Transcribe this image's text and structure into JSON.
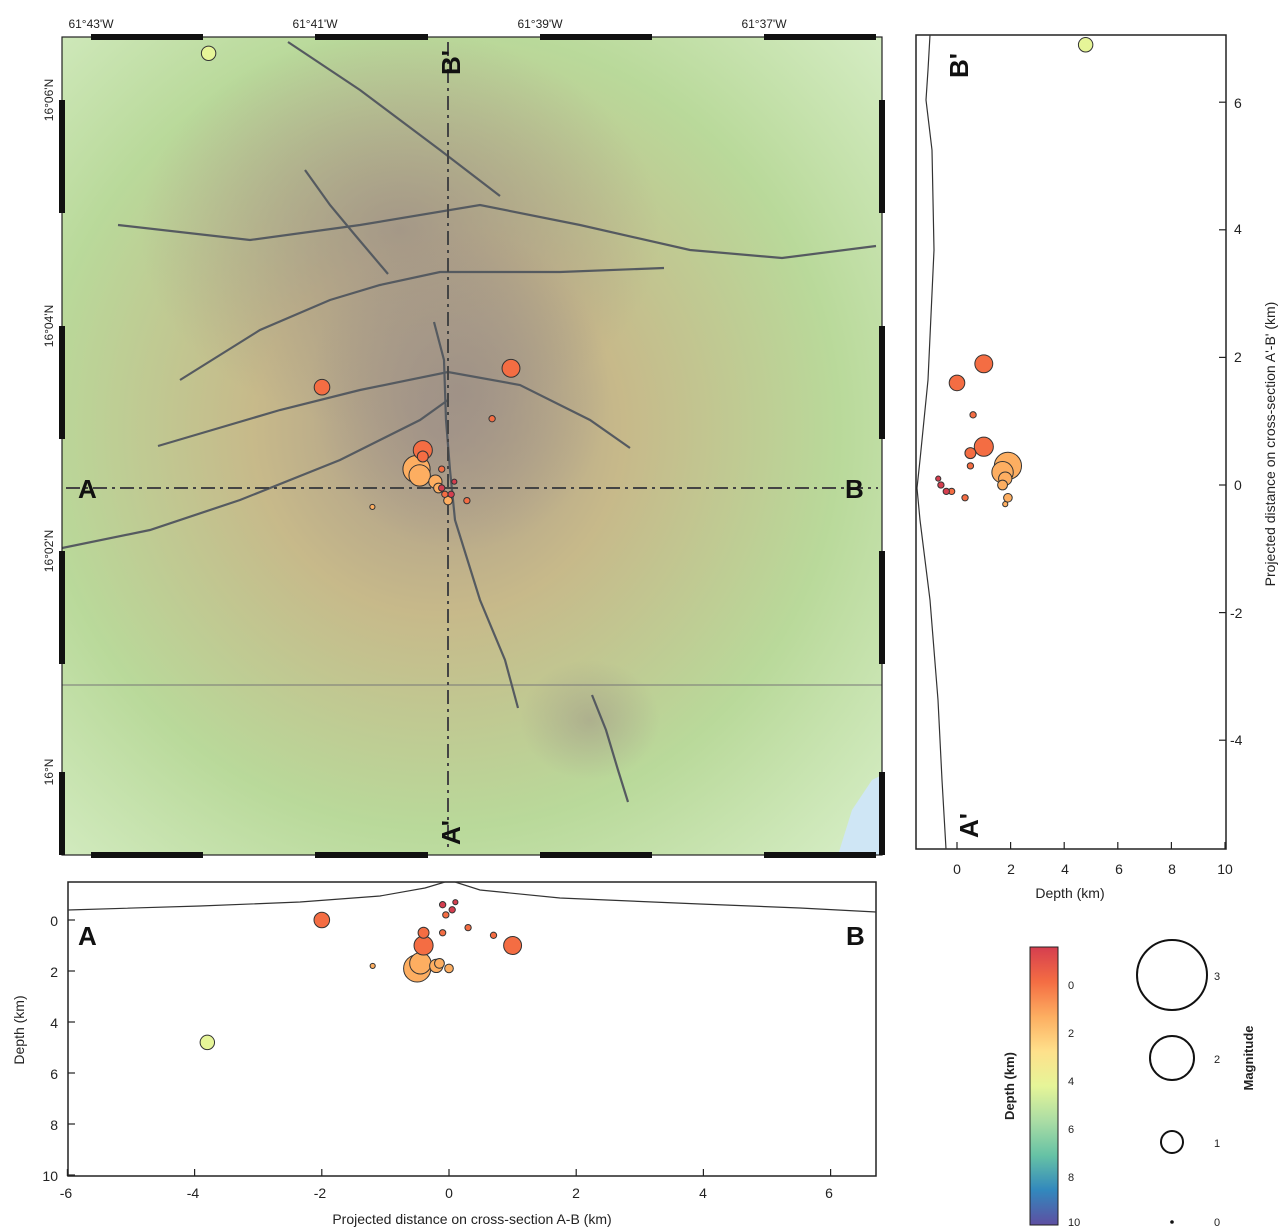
{
  "map": {
    "lon_ticks": [
      "61°43'W",
      "61°41'W",
      "61°39'W",
      "61°37'W"
    ],
    "lat_ticks": [
      "16°06'N",
      "16°04'N",
      "16°02'N",
      "16°N"
    ],
    "label_a": "A",
    "label_b": "B",
    "label_a_prime": "A'",
    "label_b_prime": "B'",
    "fault_color": "#555a60",
    "terrain_colors": [
      "#d8efc8",
      "#b9d99a",
      "#c7b98a",
      "#a9998a"
    ]
  },
  "section_ab": {
    "xlabel": "Projected distance on cross-section A-B (km)",
    "ylabel": "Depth (km)",
    "label_a": "A",
    "label_b": "B",
    "xticks": [
      "-6",
      "-4",
      "-2",
      "0",
      "2",
      "4",
      "6"
    ],
    "yticks": [
      "0",
      "2",
      "4",
      "6",
      "8",
      "10"
    ]
  },
  "section_ab_prime": {
    "xlabel": "Depth (km)",
    "ylabel": "Projected distance on cross-section A'-B' (km)",
    "label_a_prime": "A'",
    "label_b_prime": "B'",
    "xticks": [
      "0",
      "2",
      "4",
      "6",
      "8",
      "10"
    ],
    "yticks": [
      "6",
      "4",
      "2",
      "0",
      "-2",
      "-4"
    ]
  },
  "colorbar": {
    "title": "Depth (km)",
    "ticks": [
      "0",
      "2",
      "4",
      "6",
      "8",
      "10"
    ],
    "colors": [
      "#d53e4f",
      "#f46d43",
      "#fdae61",
      "#fee08b",
      "#e6f598",
      "#abdda4",
      "#66c2a5",
      "#3288bd",
      "#5e4fa2"
    ]
  },
  "magnitude_legend": {
    "title": "Magnitude",
    "labels": [
      "3",
      "2",
      "1",
      "0"
    ]
  },
  "chart_data": {
    "type": "scatter",
    "events": [
      {
        "ab_km": -3.8,
        "abp_km": 6.9,
        "depth_km": 4.8,
        "mag": 0.9
      },
      {
        "ab_km": -2.0,
        "abp_km": 1.6,
        "depth_km": 0.0,
        "mag": 1.0
      },
      {
        "ab_km": 1.0,
        "abp_km": 1.9,
        "depth_km": 1.0,
        "mag": 1.2
      },
      {
        "ab_km": -0.4,
        "abp_km": 0.6,
        "depth_km": 1.0,
        "mag": 1.3
      },
      {
        "ab_km": -0.5,
        "abp_km": 0.3,
        "depth_km": 1.9,
        "mag": 2.0
      },
      {
        "ab_km": -0.45,
        "abp_km": 0.2,
        "depth_km": 1.7,
        "mag": 1.5
      },
      {
        "ab_km": -0.4,
        "abp_km": 0.5,
        "depth_km": 0.5,
        "mag": 0.6
      },
      {
        "ab_km": -0.2,
        "abp_km": 0.1,
        "depth_km": 1.8,
        "mag": 0.8
      },
      {
        "ab_km": 0.0,
        "abp_km": -0.2,
        "depth_km": 1.9,
        "mag": 0.4
      },
      {
        "ab_km": -0.15,
        "abp_km": 0.0,
        "depth_km": 1.7,
        "mag": 0.5
      },
      {
        "ab_km": -0.1,
        "abp_km": 0.3,
        "depth_km": 0.5,
        "mag": 0.2
      },
      {
        "ab_km": -0.05,
        "abp_km": -0.1,
        "depth_km": -0.2,
        "mag": 0.2
      },
      {
        "ab_km": 0.05,
        "abp_km": -0.1,
        "depth_km": -0.4,
        "mag": 0.2
      },
      {
        "ab_km": 0.3,
        "abp_km": -0.2,
        "depth_km": 0.3,
        "mag": 0.2
      },
      {
        "ab_km": 0.7,
        "abp_km": 1.1,
        "depth_km": 0.6,
        "mag": 0.2
      },
      {
        "ab_km": -1.2,
        "abp_km": -0.3,
        "depth_km": 1.8,
        "mag": 0.1
      },
      {
        "ab_km": -0.1,
        "abp_km": 0.0,
        "depth_km": -0.6,
        "mag": 0.2
      },
      {
        "ab_km": 0.1,
        "abp_km": 0.1,
        "depth_km": -0.7,
        "mag": 0.1
      }
    ],
    "ab_xlim": [
      -6,
      6.7
    ],
    "ab_depth_lim": [
      10,
      -1.3
    ],
    "abp_depth_lim": [
      -1.5,
      10
    ],
    "abp_ylim": [
      -5.8,
      7.2
    ],
    "colorscale": "depth",
    "xlabel": "Projected distance on cross-section A-B (km)",
    "ylabel": "Projected distance on cross-section A'-B' (km)"
  }
}
